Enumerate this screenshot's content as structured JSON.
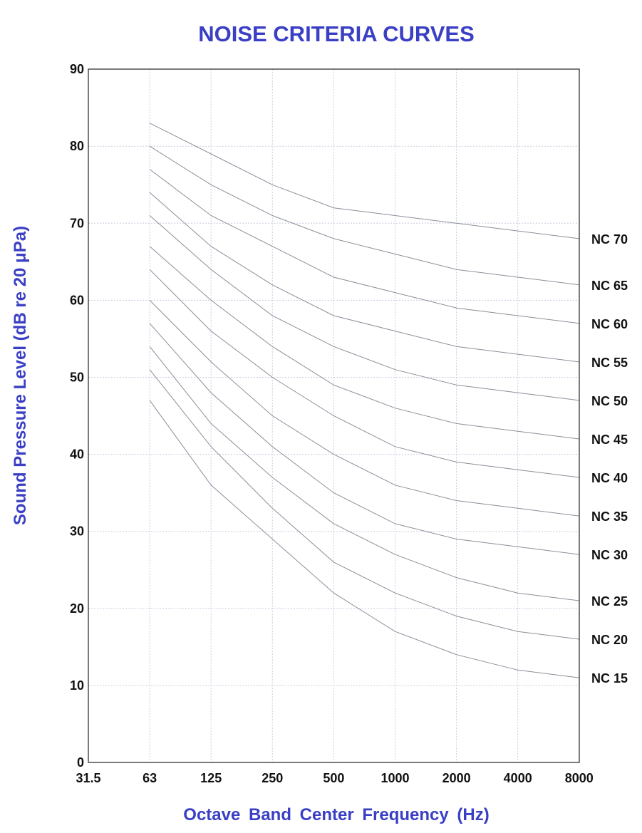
{
  "chart_data": {
    "type": "line",
    "title": "NOISE CRITERIA CURVES",
    "xlabel": "Octave Band Center Frequency (Hz)",
    "ylabel": "Sound Pressure Level (dB re 20 μPa)",
    "x_categories": [
      "31.5",
      "63",
      "125",
      "250",
      "500",
      "1000",
      "2000",
      "4000",
      "8000"
    ],
    "y_ticks": [
      0,
      10,
      20,
      30,
      40,
      50,
      60,
      70,
      80,
      90
    ],
    "ylim": [
      0,
      90
    ],
    "grid": true,
    "legend": "none (series labelled at right end of each curve)",
    "series": [
      {
        "name": "NC 70",
        "values": [
          null,
          83,
          79,
          75,
          72,
          71,
          70,
          69,
          68
        ]
      },
      {
        "name": "NC 65",
        "values": [
          null,
          80,
          75,
          71,
          68,
          66,
          64,
          63,
          62
        ]
      },
      {
        "name": "NC 60",
        "values": [
          null,
          77,
          71,
          67,
          63,
          61,
          59,
          58,
          57
        ]
      },
      {
        "name": "NC 55",
        "values": [
          null,
          74,
          67,
          62,
          58,
          56,
          54,
          53,
          52
        ]
      },
      {
        "name": "NC 50",
        "values": [
          null,
          71,
          64,
          58,
          54,
          51,
          49,
          48,
          47
        ]
      },
      {
        "name": "NC 45",
        "values": [
          null,
          67,
          60,
          54,
          49,
          46,
          44,
          43,
          42
        ]
      },
      {
        "name": "NC 40",
        "values": [
          null,
          64,
          56,
          50,
          45,
          41,
          39,
          38,
          37
        ]
      },
      {
        "name": "NC 35",
        "values": [
          null,
          60,
          52,
          45,
          40,
          36,
          34,
          33,
          32
        ]
      },
      {
        "name": "NC 30",
        "values": [
          null,
          57,
          48,
          41,
          35,
          31,
          29,
          28,
          27
        ]
      },
      {
        "name": "NC 25",
        "values": [
          null,
          54,
          44,
          37,
          31,
          27,
          24,
          22,
          21
        ]
      },
      {
        "name": "NC 20",
        "values": [
          null,
          51,
          41,
          33,
          26,
          22,
          19,
          17,
          16
        ]
      },
      {
        "name": "NC 15",
        "values": [
          null,
          47,
          36,
          29,
          22,
          17,
          14,
          12,
          11
        ]
      }
    ]
  }
}
